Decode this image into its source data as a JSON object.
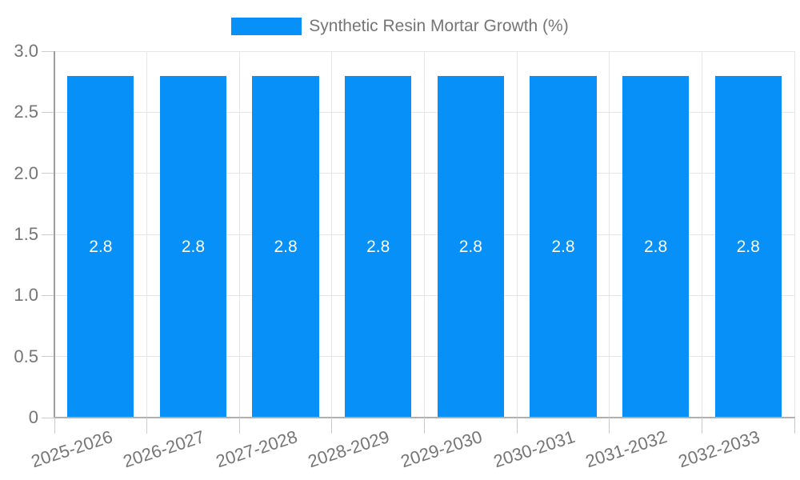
{
  "chart_data": {
    "type": "bar",
    "title": "Synthetic Resin Mortar Growth (%)",
    "legend": {
      "label": "Synthetic Resin Mortar Growth (%)",
      "position": "top"
    },
    "categories": [
      "2025-2026",
      "2026-2027",
      "2027-2028",
      "2028-2029",
      "2029-2030",
      "2030-2031",
      "2031-2032",
      "2032-2033"
    ],
    "series": [
      {
        "name": "Synthetic Resin Mortar Growth (%)",
        "values": [
          2.8,
          2.8,
          2.8,
          2.8,
          2.8,
          2.8,
          2.8,
          2.8
        ]
      }
    ],
    "bar_value_labels": [
      "2.8",
      "2.8",
      "2.8",
      "2.8",
      "2.8",
      "2.8",
      "2.8",
      "2.8"
    ],
    "xlabel": "",
    "ylabel": "",
    "ylim": [
      0,
      3
    ],
    "y_ticks": [
      {
        "value": 0,
        "label": "0"
      },
      {
        "value": 0.5,
        "label": "0.5"
      },
      {
        "value": 1,
        "label": "1.0"
      },
      {
        "value": 1.5,
        "label": "1.5"
      },
      {
        "value": 2,
        "label": "2.0"
      },
      {
        "value": 2.5,
        "label": "2.5"
      },
      {
        "value": 3,
        "label": "3.0"
      }
    ],
    "grid": true,
    "colors": {
      "bar": "#0690F8",
      "axis_text": "#757575",
      "gridline": "#e6e6e6",
      "axis_line_y": "#9e9e9e",
      "axis_line_x": "#b0b0b0",
      "tick": "#cccccc",
      "value_label": "#ffffff"
    }
  }
}
